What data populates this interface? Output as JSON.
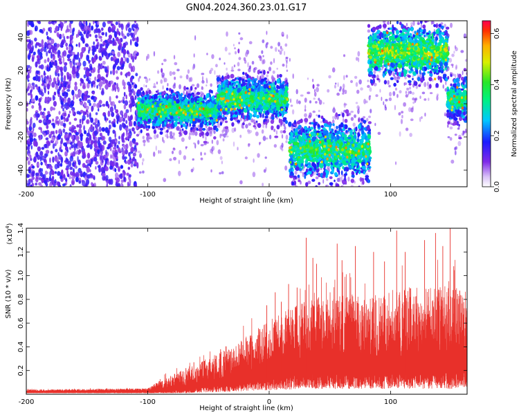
{
  "chart_data": [
    {
      "type": "heatmap",
      "title": "GN04.2024.360.23.01.G17",
      "xlabel": "Height of straight line (km)",
      "ylabel": "Frequency (Hz)",
      "xlim": [
        -200,
        163
      ],
      "ylim": [
        -50,
        50
      ],
      "xticks": [
        "-200",
        "-100",
        "0",
        "100"
      ],
      "yticks": [
        "-40",
        "-20",
        "0",
        "20",
        "40"
      ],
      "colorbar": {
        "label": "Normalized spectral amplitude",
        "range": [
          0,
          0.65
        ],
        "ticks": [
          "0.0",
          "0.2",
          "0.4",
          "0.6"
        ],
        "colormap": "rainbow (white-violet-blue-cyan-green-yellow-red)"
      },
      "segments": [
        {
          "x": [
            -200,
            -108
          ],
          "kind": "noise",
          "y_center": 0,
          "y_spread": 50,
          "level": 0.15
        },
        {
          "x": [
            -108,
            -42
          ],
          "kind": "signal",
          "y_center": -4,
          "y_spread": 5,
          "level": 0.3
        },
        {
          "x": [
            -42,
            15
          ],
          "kind": "signal",
          "y_center": 3,
          "y_spread": 6,
          "level": 0.3
        },
        {
          "x": [
            17,
            83
          ],
          "kind": "signal",
          "y_center": -28,
          "y_spread": 8,
          "level": 0.3
        },
        {
          "x": [
            82,
            147
          ],
          "kind": "signal",
          "y_center": 31,
          "y_spread": 7,
          "level": 0.35
        },
        {
          "x": [
            147,
            163
          ],
          "kind": "signal",
          "y_center": 2,
          "y_spread": 6,
          "level": 0.3
        }
      ]
    },
    {
      "type": "line",
      "xlabel": "Height of straight line (km)",
      "ylabel": "SNR (10 * v/v)",
      "y_multiplier": "(x10",
      "y_multiplier_exp": "4",
      "y_multiplier_close": ")",
      "xlim": [
        -200,
        163
      ],
      "ylim": [
        0,
        1.4
      ],
      "xticks": [
        "-200",
        "-100",
        "0",
        "100"
      ],
      "yticks": [
        "0.2",
        "0.4",
        "0.6",
        "0.8",
        "1.0",
        "1.2",
        "1.4"
      ],
      "color": "#e8302a",
      "envelope": {
        "x": [
          -200,
          -100,
          -90,
          -80,
          -70,
          -60,
          -50,
          -40,
          -30,
          -20,
          -10,
          0,
          10,
          20,
          30,
          40,
          50,
          60,
          70,
          80,
          90,
          100,
          110,
          120,
          130,
          140,
          150,
          163
        ],
        "base": [
          0.025,
          0.03,
          0.04,
          0.05,
          0.06,
          0.08,
          0.1,
          0.12,
          0.14,
          0.17,
          0.2,
          0.22,
          0.25,
          0.27,
          0.29,
          0.3,
          0.3,
          0.3,
          0.3,
          0.3,
          0.3,
          0.3,
          0.3,
          0.3,
          0.3,
          0.3,
          0.3,
          0.3
        ],
        "upper": [
          0.04,
          0.05,
          0.12,
          0.16,
          0.22,
          0.26,
          0.3,
          0.36,
          0.4,
          0.48,
          0.55,
          0.62,
          0.7,
          0.75,
          0.78,
          0.82,
          0.8,
          0.85,
          0.85,
          0.8,
          0.85,
          0.88,
          0.9,
          0.92,
          0.9,
          0.92,
          0.9,
          0.88
        ]
      },
      "peaks": [
        {
          "x": 30.5,
          "y": 1.32
        },
        {
          "x": 36,
          "y": 1.15
        },
        {
          "x": 39,
          "y": 1.1
        },
        {
          "x": 56,
          "y": 1.27
        },
        {
          "x": 60,
          "y": 1.13
        },
        {
          "x": 71,
          "y": 1.25
        },
        {
          "x": 86,
          "y": 1.2
        },
        {
          "x": 95,
          "y": 1.12
        },
        {
          "x": 105,
          "y": 1.38
        },
        {
          "x": 112,
          "y": 1.2
        },
        {
          "x": 128,
          "y": 1.3
        },
        {
          "x": 137,
          "y": 1.36
        },
        {
          "x": 143,
          "y": 1.25
        },
        {
          "x": 149,
          "y": 1.4
        },
        {
          "x": 152,
          "y": 1.08
        },
        {
          "x": -62,
          "y": 0.27
        },
        {
          "x": -40,
          "y": 0.38
        },
        {
          "x": -18,
          "y": 0.45
        },
        {
          "x": -2,
          "y": 0.75
        },
        {
          "x": 5,
          "y": 0.86
        },
        {
          "x": 10,
          "y": 0.78
        },
        {
          "x": 16,
          "y": 0.93
        },
        {
          "x": 23,
          "y": 0.9
        }
      ]
    }
  ]
}
